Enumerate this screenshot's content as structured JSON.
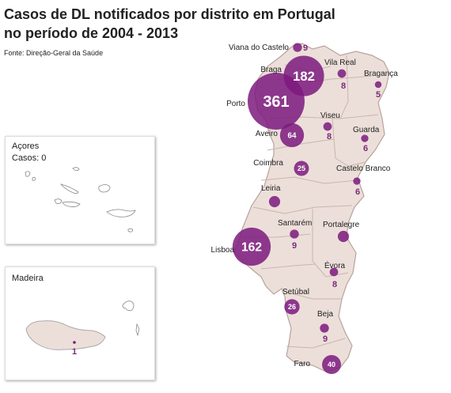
{
  "title": {
    "line1": "Casos de DL notificados por distrito em Portugal",
    "line2": "no período de 2004 - 2013"
  },
  "source": "Fonte: Direção-Geral da Saúde",
  "insets": {
    "acores": {
      "title": "Açores",
      "cases_label": "Casos: 0"
    },
    "madeira": {
      "title": "Madeira",
      "value": "1"
    }
  },
  "colors": {
    "land": "#ecdfd9",
    "border": "#b7a39c",
    "bubble": "#7d1a7e",
    "bubble_alpha": 0.85
  },
  "districts": [
    {
      "name": "Viana do Castelo",
      "cases": 9
    },
    {
      "name": "Braga",
      "cases": 182
    },
    {
      "name": "Vila Real",
      "cases": 8
    },
    {
      "name": "Bragança",
      "cases": 5
    },
    {
      "name": "Porto",
      "cases": 361
    },
    {
      "name": "Viseu",
      "cases": 8
    },
    {
      "name": "Aveiro",
      "cases": 64
    },
    {
      "name": "Guarda",
      "cases": 6
    },
    {
      "name": "Coimbra",
      "cases": 25
    },
    {
      "name": "Castelo Branco",
      "cases": 6
    },
    {
      "name": "Leiria",
      "cases": 14
    },
    {
      "name": "Santarém",
      "cases": 9
    },
    {
      "name": "Portalegre",
      "cases": 14
    },
    {
      "name": "Lisboa",
      "cases": 162
    },
    {
      "name": "Évora",
      "cases": 8
    },
    {
      "name": "Setúbal",
      "cases": 26
    },
    {
      "name": "Beja",
      "cases": 9
    },
    {
      "name": "Faro",
      "cases": 40
    }
  ]
}
